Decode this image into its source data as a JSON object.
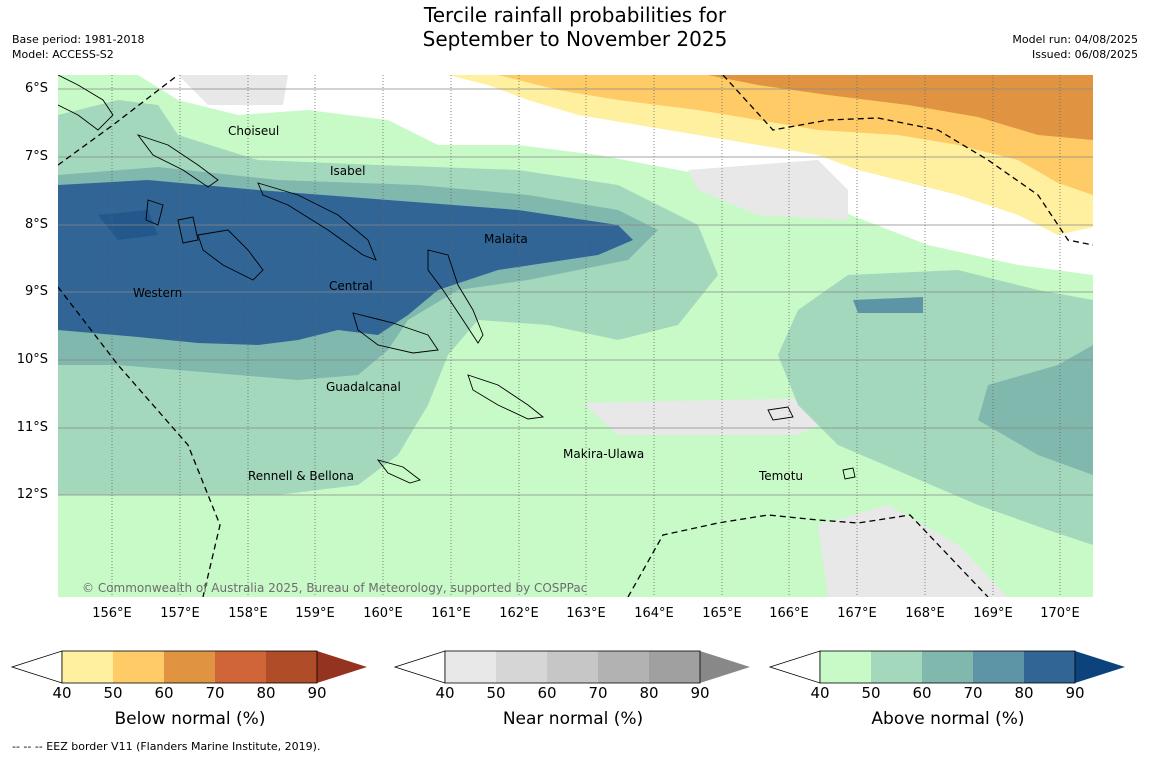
{
  "header": {
    "title_line1": "Tercile rainfall probabilities for",
    "title_line2": "September to November 2025",
    "base_period": "Base period: 1981-2018",
    "model": "Model: ACCESS-S2",
    "model_run": "Model run: 04/08/2025",
    "issued": "Issued: 06/08/2025"
  },
  "map": {
    "lat_labels": [
      "6°S",
      "7°S",
      "8°S",
      "9°S",
      "10°S",
      "11°S",
      "12°S"
    ],
    "lon_labels": [
      "156°E",
      "157°E",
      "158°E",
      "159°E",
      "160°E",
      "161°E",
      "162°E",
      "163°E",
      "164°E",
      "165°E",
      "166°E",
      "167°E",
      "168°E",
      "169°E",
      "170°E"
    ],
    "regions": {
      "choiseul": "Choiseul",
      "isabel": "Isabel",
      "malaita": "Malaita",
      "western": "Western",
      "central": "Central",
      "guadalcanal": "Guadalcanal",
      "makira": "Makira-Ulawa",
      "rennell": "Rennell & Bellona",
      "temotu": "Temotu"
    },
    "copyright": "© Commonwealth of Australia 2025, Bureau of Meteorology, supported by COSPPac"
  },
  "colors": {
    "below": [
      "#fff0a0",
      "#fecb66",
      "#e09442",
      "#d06637",
      "#b04c27",
      "#943420"
    ],
    "near": [
      "#e8e8e8",
      "#d6d6d6",
      "#c6c6c6",
      "#b2b2b2",
      "#a0a0a0",
      "#888888"
    ],
    "above": [
      "#c8fac8",
      "#a4d8bc",
      "#80b8ae",
      "#5e95a6",
      "#306596",
      "#0c437c"
    ]
  },
  "legend": {
    "ticks": [
      "40",
      "50",
      "60",
      "70",
      "80",
      "90"
    ],
    "below_title": "Below normal (%)",
    "near_title": "Near normal (%)",
    "above_title": "Above normal (%)"
  },
  "footer": {
    "eez_note": "--  --  -- EEZ border V11 (Flanders Marine Institute, 2019)."
  }
}
